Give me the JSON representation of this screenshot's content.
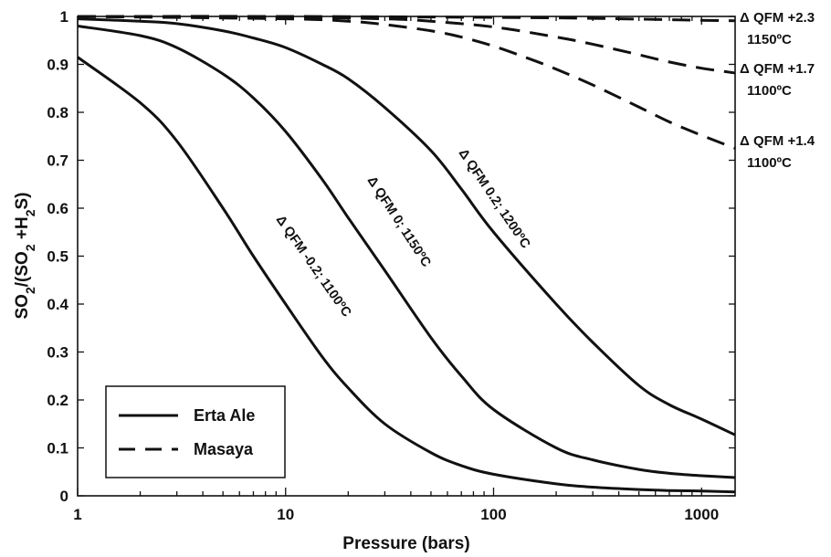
{
  "chart_data": {
    "type": "line",
    "x_scale": "log",
    "xlabel": "Pressure (bars)",
    "ylabel": {
      "parts": [
        {
          "t": "SO",
          "sub": false
        },
        {
          "t": "2",
          "sub": true
        },
        {
          "t": "/(SO",
          "sub": false
        },
        {
          "t": "2",
          "sub": true
        },
        {
          "t": " +H",
          "sub": false
        },
        {
          "t": "2",
          "sub": true
        },
        {
          "t": "S)",
          "sub": false
        }
      ]
    },
    "xlim": [
      1,
      1450
    ],
    "ylim": [
      0,
      1
    ],
    "x_ticks": [
      1,
      10,
      100,
      1000
    ],
    "x_tick_labels": [
      "1",
      "10",
      "100",
      "1000"
    ],
    "y_ticks": [
      0,
      0.1,
      0.2,
      0.3,
      0.4,
      0.5,
      0.6,
      0.7,
      0.8,
      0.9,
      1
    ],
    "y_tick_labels": [
      "0",
      "0.1",
      "0.2",
      "0.3",
      "0.4",
      "0.5",
      "0.6",
      "0.7",
      "0.8",
      "0.9",
      "1"
    ],
    "grid": false,
    "legend": {
      "placement": "bottom-left",
      "entries": [
        {
          "label": "Erta Ale",
          "style": "solid"
        },
        {
          "label": "Masaya",
          "style": "dashed"
        }
      ]
    },
    "colors": {
      "line": "#111111",
      "axes": "#111111",
      "background": "#ffffff"
    },
    "series": [
      {
        "group": "Erta Ale",
        "style": "solid",
        "annotation": "Δ QFM -0.2; 1100ºC",
        "x": [
          1,
          2,
          3,
          5,
          7,
          10,
          15,
          20,
          30,
          50,
          70,
          100,
          200,
          300,
          500,
          700,
          1000,
          1450
        ],
        "y": [
          0.915,
          0.82,
          0.74,
          0.6,
          0.5,
          0.4,
          0.29,
          0.225,
          0.15,
          0.09,
          0.063,
          0.045,
          0.025,
          0.018,
          0.013,
          0.011,
          0.01,
          0.008
        ]
      },
      {
        "group": "Erta Ale",
        "style": "solid",
        "annotation": "Δ QFM 0; 1150ºC",
        "x": [
          1,
          2,
          3,
          5,
          7,
          10,
          15,
          20,
          30,
          50,
          70,
          100,
          200,
          300,
          500,
          700,
          1000,
          1450
        ],
        "y": [
          0.98,
          0.96,
          0.935,
          0.88,
          0.83,
          0.76,
          0.66,
          0.58,
          0.47,
          0.33,
          0.25,
          0.18,
          0.1,
          0.075,
          0.055,
          0.047,
          0.042,
          0.038
        ]
      },
      {
        "group": "Erta Ale",
        "style": "solid",
        "annotation": "Δ QFM 0.2; 1200ºC",
        "x": [
          1,
          2,
          3,
          5,
          7,
          10,
          15,
          20,
          30,
          50,
          70,
          100,
          200,
          300,
          500,
          700,
          1000,
          1450
        ],
        "y": [
          0.995,
          0.99,
          0.985,
          0.97,
          0.955,
          0.935,
          0.9,
          0.87,
          0.81,
          0.72,
          0.64,
          0.55,
          0.4,
          0.32,
          0.23,
          0.19,
          0.16,
          0.127
        ]
      },
      {
        "group": "Masaya",
        "style": "dashed",
        "annotation": "Δ QFM +2.3",
        "annotation_temp": "1150ºC",
        "x": [
          1,
          10,
          100,
          300,
          1000,
          1450
        ],
        "y": [
          1,
          1,
          0.998,
          0.996,
          0.992,
          0.991
        ]
      },
      {
        "group": "Masaya",
        "style": "dashed",
        "annotation": "Δ QFM +1.7",
        "annotation_temp": "1100ºC",
        "x": [
          1,
          10,
          30,
          50,
          100,
          200,
          300,
          500,
          700,
          1000,
          1450
        ],
        "y": [
          1,
          0.998,
          0.995,
          0.99,
          0.978,
          0.957,
          0.942,
          0.92,
          0.905,
          0.892,
          0.882
        ]
      },
      {
        "group": "Masaya",
        "style": "dashed",
        "annotation": "Δ QFM +1.4",
        "annotation_temp": "1100ºC",
        "x": [
          1,
          10,
          20,
          30,
          50,
          70,
          100,
          150,
          200,
          300,
          500,
          700,
          1000,
          1450
        ],
        "y": [
          1,
          0.995,
          0.99,
          0.983,
          0.97,
          0.957,
          0.938,
          0.911,
          0.89,
          0.857,
          0.811,
          0.78,
          0.752,
          0.725
        ]
      }
    ]
  }
}
